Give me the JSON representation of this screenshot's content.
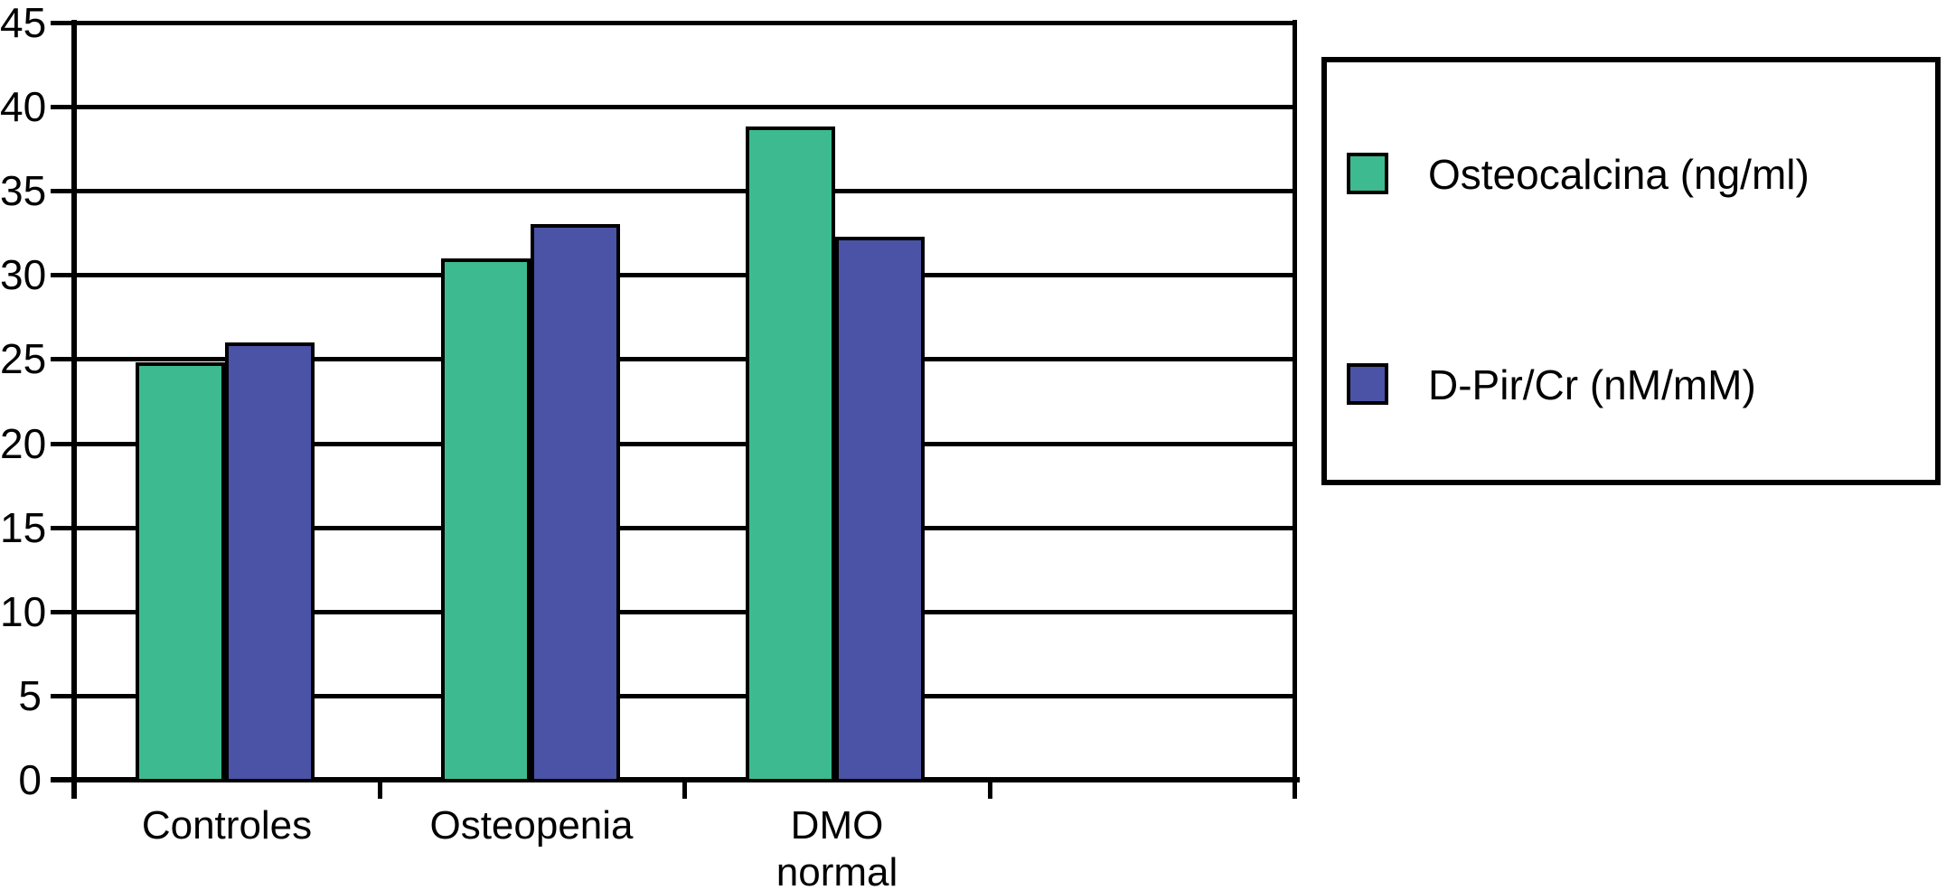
{
  "chart_data": {
    "type": "bar",
    "categories": [
      "Controles",
      "Osteopenia",
      "DMO\nnormal"
    ],
    "series": [
      {
        "name": "Osteocalcina (ng/ml)",
        "color": "#3DBA90",
        "values": [
          24.8,
          31,
          38.8
        ]
      },
      {
        "name": "D-Pir/Cr (nM/mM)",
        "color": "#4A53A6",
        "values": [
          26,
          33,
          32.3
        ]
      }
    ],
    "title": "",
    "xlabel": "",
    "ylabel": "",
    "ylim": [
      0,
      45
    ],
    "y_tick_step": 5,
    "y_tick_labels": [
      "45",
      "40",
      "35",
      "30",
      "25",
      "20",
      "15",
      "10",
      "5",
      "0"
    ],
    "num_category_slots": 4,
    "grid": "horizontal",
    "legend_position": "right",
    "colors": {
      "bar_outline": "#000000",
      "grid_color": "#000000",
      "background": "#ffffff"
    }
  },
  "legend": {
    "items": [
      {
        "label": "Osteocalcina (ng/ml)",
        "swatch": "green-swatch"
      },
      {
        "label": "D-Pir/Cr (nM/mM)",
        "swatch": "blue-swatch"
      }
    ]
  }
}
